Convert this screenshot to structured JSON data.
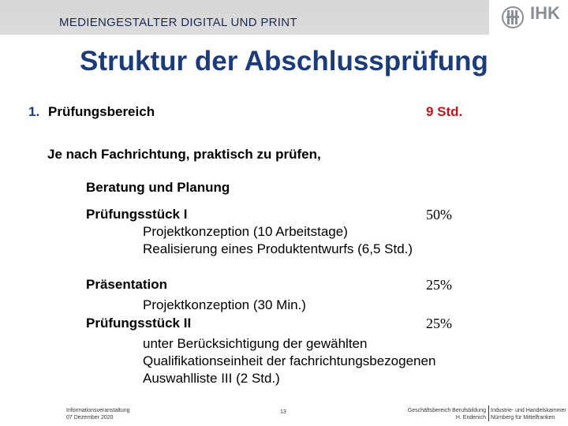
{
  "header": {
    "subtitle": "MEDIENGESTALTER DIGITAL UND PRINT",
    "logo_text": "IHK"
  },
  "title": "Struktur der Abschlussprüfung",
  "section": {
    "number": "1.",
    "label": "Prüfungsbereich",
    "hours": "9 Std."
  },
  "content": {
    "intro": "Je nach Fachrichtung, praktisch zu prüfen,",
    "beratung": "Beratung und Planung",
    "pruefungsstueck1": {
      "label": "Prüfungsstück I",
      "percent": "50%",
      "lines": [
        "Projektkonzeption (10 Arbeitstage)",
        "Realisierung eines Produktentwurfs (6,5 Std.)"
      ]
    },
    "praesentation": {
      "label": "Präsentation",
      "percent": "25%",
      "lines": [
        "Projektkonzeption (30 Min.)"
      ]
    },
    "pruefungsstueck2": {
      "label": "Prüfungsstück II",
      "percent": "25%",
      "lines": [
        "unter Berücksichtigung der gewählten",
        "Qualifikationseinheit der fachrichtungsbezogenen",
        "Auswahlliste III (2 Std.)"
      ]
    }
  },
  "footer": {
    "left_line1": "Informationsveranstaltung",
    "left_line2": "07 Dezember 2020",
    "page": "13",
    "right_a_line1": "Geschäftsbereich Berufsbildung",
    "right_a_line2": "H. Endenich",
    "right_b_line1": "Industrie- und Handelskammer",
    "right_b_line2": "Nürnberg für Mittelfranken"
  },
  "colors": {
    "title": "#1c3b7a",
    "hours": "#c0161b",
    "topbar": "#d6d6d6"
  }
}
